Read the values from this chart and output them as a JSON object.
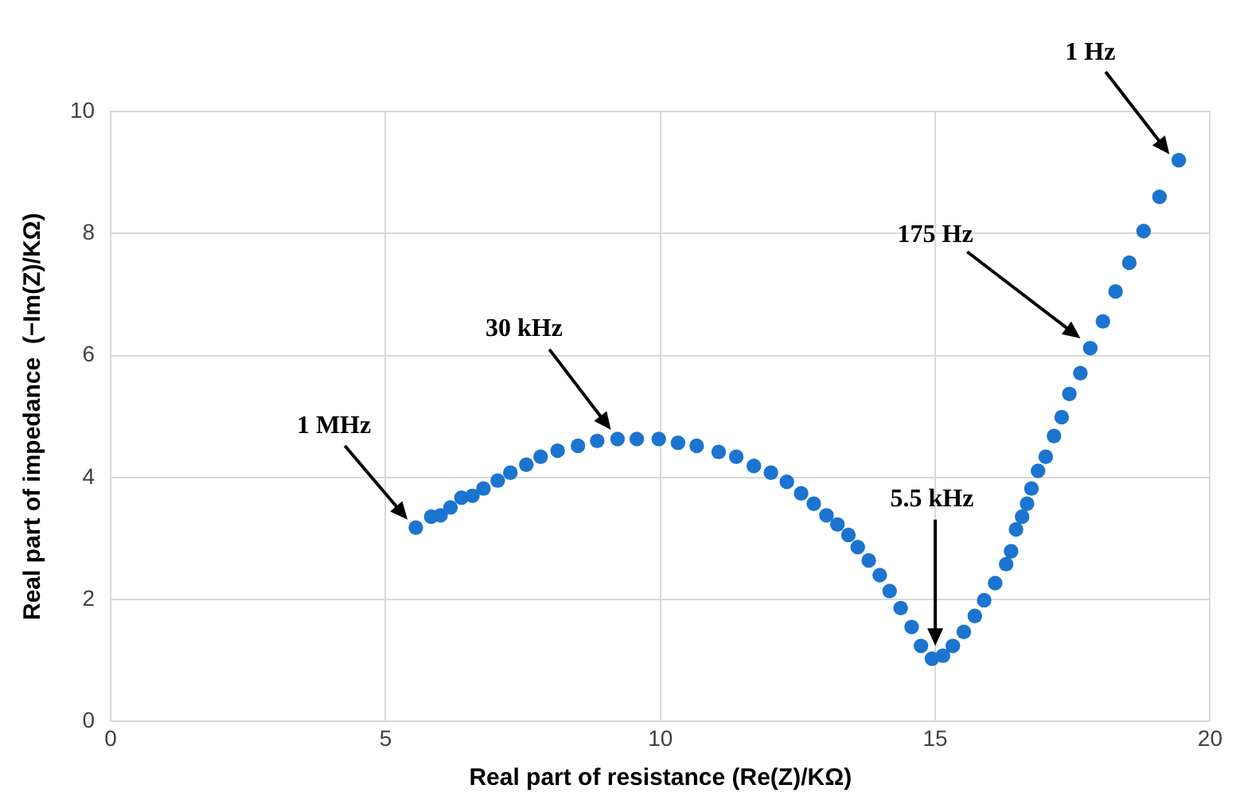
{
  "chart_data": {
    "type": "scatter",
    "xlabel": "Real part of resistance (Re(Z)/KΩ)",
    "ylabel": "Real part of impedance  (−Im(Z)/KΩ)",
    "x": [
      5.55,
      5.83,
      6.0,
      6.18,
      6.38,
      6.58,
      6.78,
      7.04,
      7.27,
      7.56,
      7.82,
      8.13,
      8.5,
      8.85,
      9.22,
      9.57,
      9.97,
      10.32,
      10.66,
      11.06,
      11.38,
      11.7,
      12.01,
      12.3,
      12.56,
      12.79,
      13.02,
      13.22,
      13.42,
      13.59,
      13.79,
      13.99,
      14.17,
      14.37,
      14.57,
      14.74,
      14.94,
      15.14,
      15.32,
      15.52,
      15.72,
      15.89,
      16.09,
      16.29,
      16.38,
      16.47,
      16.58,
      16.67,
      16.75,
      16.87,
      17.01,
      17.16,
      17.3,
      17.44,
      17.64,
      17.82,
      18.05,
      18.28,
      18.53,
      18.79,
      19.08,
      19.43
    ],
    "series": [
      {
        "color": "#1b74cf",
        "values": [
          3.18,
          3.36,
          3.38,
          3.51,
          3.67,
          3.7,
          3.82,
          3.95,
          4.08,
          4.21,
          4.34,
          4.44,
          4.52,
          4.6,
          4.63,
          4.63,
          4.63,
          4.57,
          4.52,
          4.42,
          4.34,
          4.19,
          4.08,
          3.93,
          3.74,
          3.57,
          3.38,
          3.23,
          3.06,
          2.86,
          2.64,
          2.4,
          2.14,
          1.86,
          1.55,
          1.24,
          1.03,
          1.08,
          1.24,
          1.47,
          1.73,
          1.99,
          2.27,
          2.58,
          2.79,
          3.15,
          3.36,
          3.57,
          3.82,
          4.11,
          4.34,
          4.68,
          4.99,
          5.37,
          5.71,
          6.12,
          6.56,
          7.05,
          7.52,
          8.04,
          8.6,
          9.2
        ]
      }
    ],
    "xlim": [
      0,
      20
    ],
    "xticks": [
      0,
      5,
      10,
      15,
      20
    ],
    "ylim": [
      0,
      10
    ],
    "yticks": [
      0,
      2,
      4,
      6,
      8,
      10
    ],
    "grid": true,
    "legend": false,
    "marker": "circle",
    "annotations": [
      "1 Hz",
      "175 Hz",
      "30 kHz",
      "5.5 kHz",
      "1 MHz"
    ]
  }
}
